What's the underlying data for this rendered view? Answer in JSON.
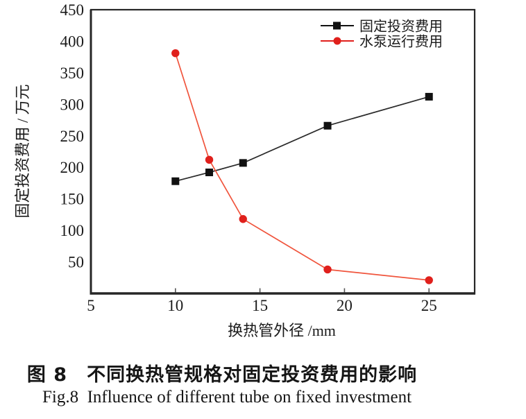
{
  "chart_data": {
    "type": "line",
    "x": [
      10,
      12,
      14,
      19,
      25
    ],
    "series": [
      {
        "name": "固定投资费用",
        "marker": "square",
        "color": "#111111",
        "line_color": "#2a2a2a",
        "values": [
          178,
          192,
          207,
          266,
          312
        ]
      },
      {
        "name": "水泵运行费用",
        "marker": "circle",
        "color": "#e0201c",
        "line_color": "#f0543c",
        "values": [
          381,
          212,
          118,
          38,
          21
        ]
      }
    ],
    "title": "",
    "xlabel": "换热管外径 /mm",
    "ylabel": "固定投资费用 / 万元",
    "xlim": [
      5,
      27.7
    ],
    "ylim": [
      0,
      450
    ],
    "x_ticks": [
      5,
      10,
      15,
      20,
      25
    ],
    "y_ticks": [
      50,
      100,
      150,
      200,
      250,
      300,
      350,
      400,
      450
    ],
    "grid": false,
    "legend_position": "top-right",
    "frame_color": "#262626",
    "tick_color": "#555555",
    "text_color": "#1a1a1a"
  },
  "captions": {
    "zh": "图 8　不同换热管规格对固定投资费用的影响",
    "en": "Fig.8  Influence of different tube on fixed investment"
  }
}
